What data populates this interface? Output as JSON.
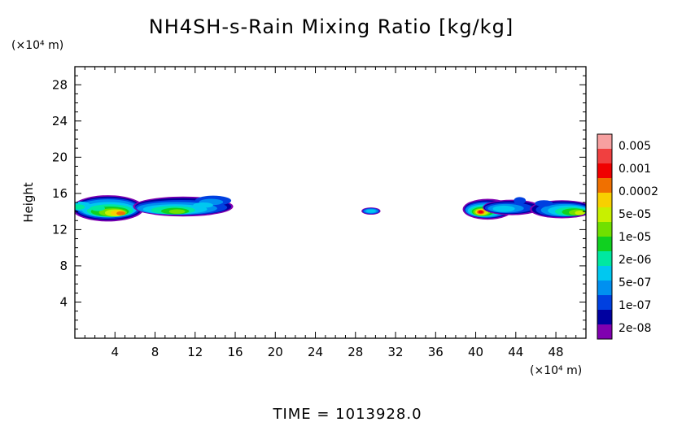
{
  "chart_data": {
    "type": "heatmap",
    "title": "NH4SH-s-Rain Mixing Ratio [kg/kg]",
    "xlabel": "",
    "x_unit_label": "(×10⁴ m)",
    "ylabel": "Height",
    "y_unit_label": "(×10⁴ m)",
    "xlim": [
      0,
      51
    ],
    "ylim": [
      0,
      30
    ],
    "x_ticks": [
      4,
      8,
      12,
      16,
      20,
      24,
      28,
      32,
      36,
      40,
      44,
      48
    ],
    "x_tick_labels": [
      "4",
      "8",
      "12",
      "16",
      "20",
      "24",
      "28",
      "32",
      "36",
      "40",
      "44",
      "48"
    ],
    "y_ticks": [
      4,
      8,
      12,
      16,
      20,
      24,
      28
    ],
    "y_tick_labels": [
      "4",
      "8",
      "12",
      "16",
      "20",
      "24",
      "28"
    ],
    "colorbar": {
      "labels": [
        "0.005",
        "0.001",
        "0.0002",
        "5e-05",
        "1e-05",
        "2e-06",
        "5e-07",
        "1e-07",
        "2e-08"
      ],
      "colors": [
        "#f7a0a0",
        "#f04040",
        "#f00000",
        "#f07000",
        "#f8d000",
        "#c8f000",
        "#70e000",
        "#10d020",
        "#00e8a0",
        "#00c8f0",
        "#0090f0",
        "#0040e0",
        "#0000a0",
        "#8000b0"
      ]
    },
    "regions": [
      {
        "name": "left cloud main",
        "x": [
          0.0,
          6.5
        ],
        "y": [
          12.8,
          15.8
        ],
        "peak": "0.0002",
        "peak_at": [
          4.5,
          13.8
        ]
      },
      {
        "name": "left cloud extension",
        "x": [
          6.5,
          15.8
        ],
        "y": [
          13.0,
          15.8
        ],
        "peak": "5e-05"
      },
      {
        "name": "center cell",
        "x": [
          28.6,
          30.5
        ],
        "y": [
          13.7,
          14.4
        ],
        "peak": "5e-07"
      },
      {
        "name": "right cloud",
        "x": [
          38.8,
          46.5
        ],
        "y": [
          13.1,
          15.6
        ],
        "peak": "0.001",
        "peak_at": [
          40.5,
          13.9
        ]
      },
      {
        "name": "right edge cloud",
        "x": [
          45.5,
          51.0
        ],
        "y": [
          13.1,
          15.2
        ],
        "peak": "5e-05"
      }
    ]
  },
  "footer": {
    "time_label": "TIME = 1013928.0"
  }
}
